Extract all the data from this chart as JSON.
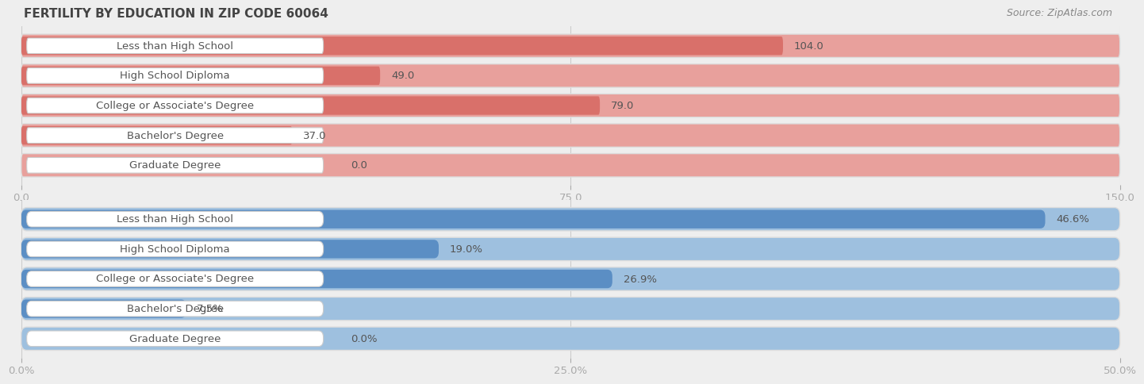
{
  "title": "FERTILITY BY EDUCATION IN ZIP CODE 60064",
  "source": "Source: ZipAtlas.com",
  "top_chart": {
    "categories": [
      "Less than High School",
      "High School Diploma",
      "College or Associate's Degree",
      "Bachelor's Degree",
      "Graduate Degree"
    ],
    "values": [
      104.0,
      49.0,
      79.0,
      37.0,
      0.0
    ],
    "xlim": [
      0,
      150
    ],
    "xticks": [
      0.0,
      75.0,
      150.0
    ],
    "xtick_labels": [
      "0.0",
      "75.0",
      "150.0"
    ],
    "bar_color": "#d9706a",
    "bg_bar_color": "#e8a09c",
    "value_labels": [
      "104.0",
      "49.0",
      "79.0",
      "37.0",
      "0.0"
    ]
  },
  "bottom_chart": {
    "categories": [
      "Less than High School",
      "High School Diploma",
      "College or Associate's Degree",
      "Bachelor's Degree",
      "Graduate Degree"
    ],
    "values": [
      46.6,
      19.0,
      26.9,
      7.5,
      0.0
    ],
    "xlim": [
      0,
      50
    ],
    "xticks": [
      0.0,
      25.0,
      50.0
    ],
    "xtick_labels": [
      "0.0%",
      "25.0%",
      "50.0%"
    ],
    "bar_color": "#5b8ec4",
    "bg_bar_color": "#9ec0df",
    "value_labels": [
      "46.6%",
      "19.0%",
      "26.9%",
      "7.5%",
      "0.0%"
    ]
  },
  "fig_bg_color": "#eeeeee",
  "chart_bg_color": "#eeeeee",
  "bar_bg_color": "#f5f5f5",
  "label_text_color": "#555555",
  "title_color": "#444444",
  "source_color": "#888888",
  "white_pill_color": "#ffffff",
  "label_fontsize": 9.5,
  "value_fontsize": 9.5,
  "title_fontsize": 11,
  "source_fontsize": 9
}
